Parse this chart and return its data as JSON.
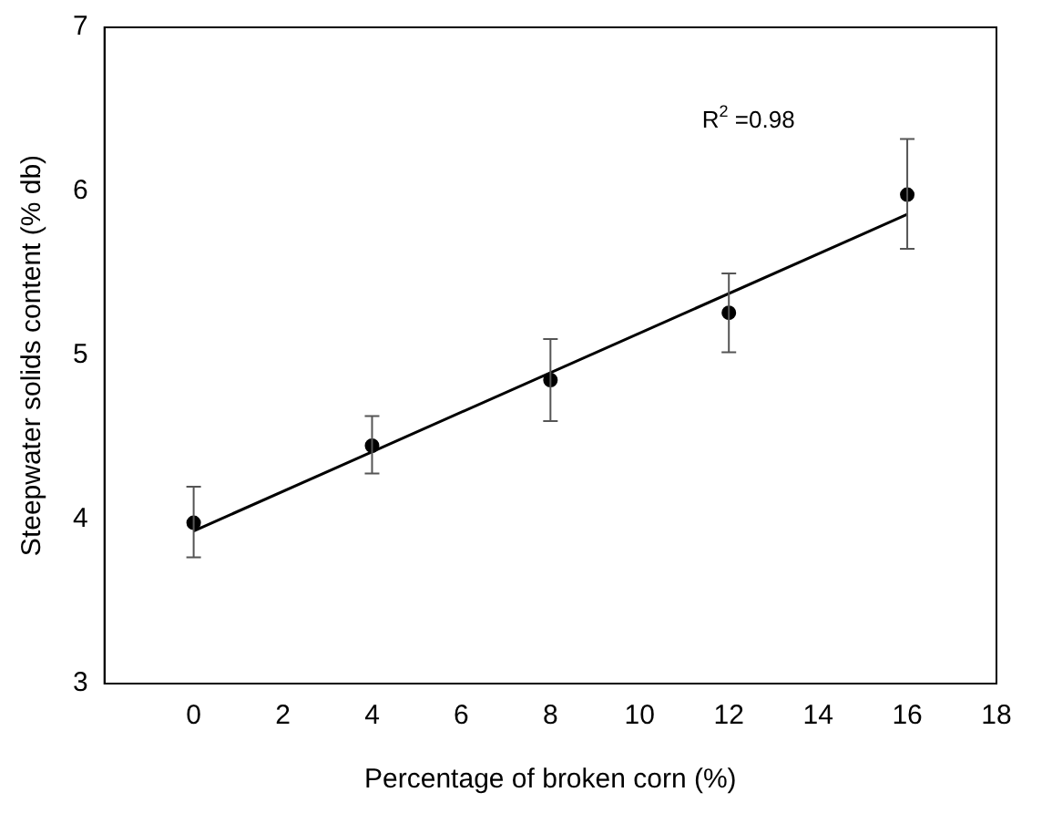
{
  "chart_data": {
    "type": "scatter",
    "xlabel": "Percentage of broken corn (%)",
    "ylabel": "Steepwater solids content (% db)",
    "xlim": [
      -2,
      18
    ],
    "xticks": [
      0,
      2,
      4,
      6,
      8,
      10,
      12,
      14,
      16,
      18
    ],
    "ylim": [
      3,
      7
    ],
    "yticks": [
      3,
      4,
      5,
      6,
      7
    ],
    "grid": false,
    "legend": false,
    "marker": "circle",
    "annotations": [
      "R$^{2}$ =0.98"
    ],
    "series": [
      {
        "type": "scatter",
        "color": "#000000",
        "x": [
          0,
          4,
          8,
          12,
          16
        ],
        "values": [
          3.98,
          4.45,
          4.85,
          5.26,
          5.98
        ],
        "errors": [
          [
            3.77,
            4.2
          ],
          [
            4.28,
            4.63
          ],
          [
            4.6,
            5.1
          ],
          [
            5.02,
            5.5
          ],
          [
            5.65,
            6.32
          ]
        ]
      },
      {
        "type": "line",
        "color": "#000000",
        "marker": "none",
        "line_style": "solid",
        "x": [
          0,
          16
        ],
        "values": [
          3.93,
          5.86
        ]
      }
    ]
  }
}
